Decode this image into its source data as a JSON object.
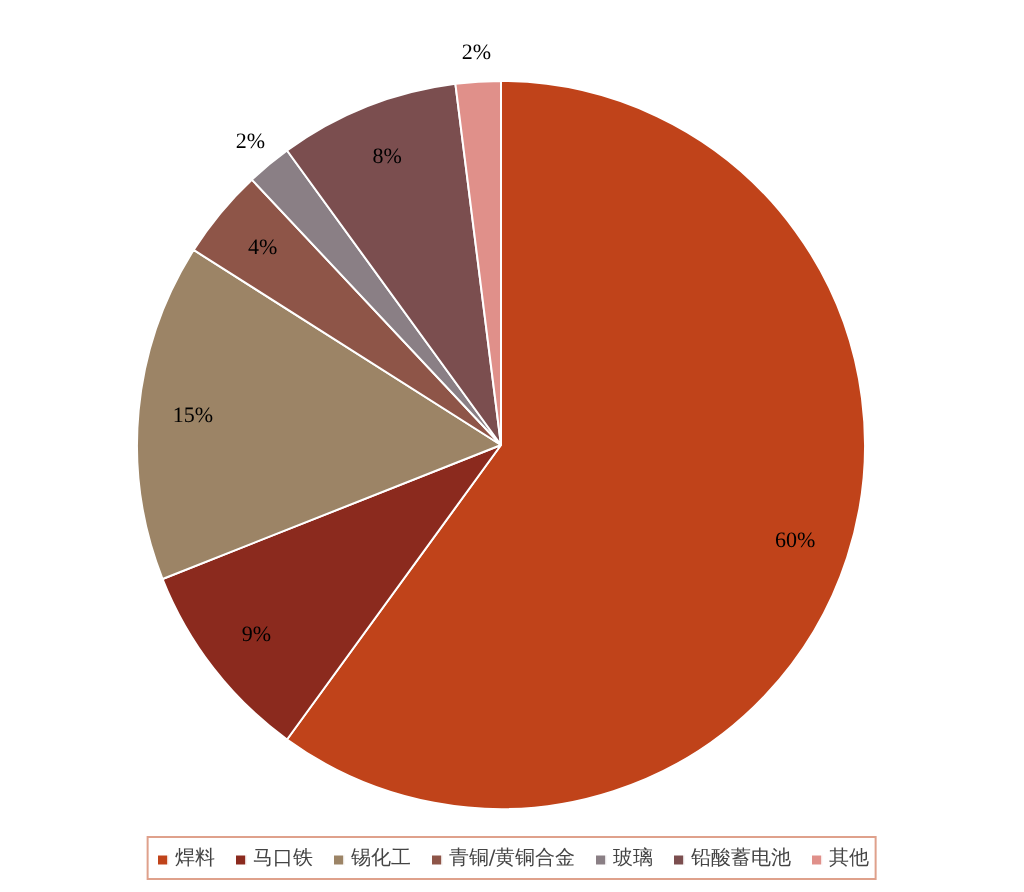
{
  "chart_data": {
    "type": "pie",
    "categories": [
      "焊料",
      "马口铁",
      "锡化工",
      "青铜/黄铜合金",
      "玻璃",
      "铅酸蓄电池",
      "其他"
    ],
    "values": [
      60,
      9,
      15,
      4,
      2,
      8,
      2
    ],
    "value_labels": [
      "60%",
      "9%",
      "15%",
      "4%",
      "2%",
      "8%",
      "2%"
    ],
    "colors": [
      "#c0431a",
      "#8b2a1e",
      "#9c8466",
      "#8e5548",
      "#8a7f85",
      "#7b4e4f",
      "#e0908a"
    ],
    "legend": "bottom"
  }
}
